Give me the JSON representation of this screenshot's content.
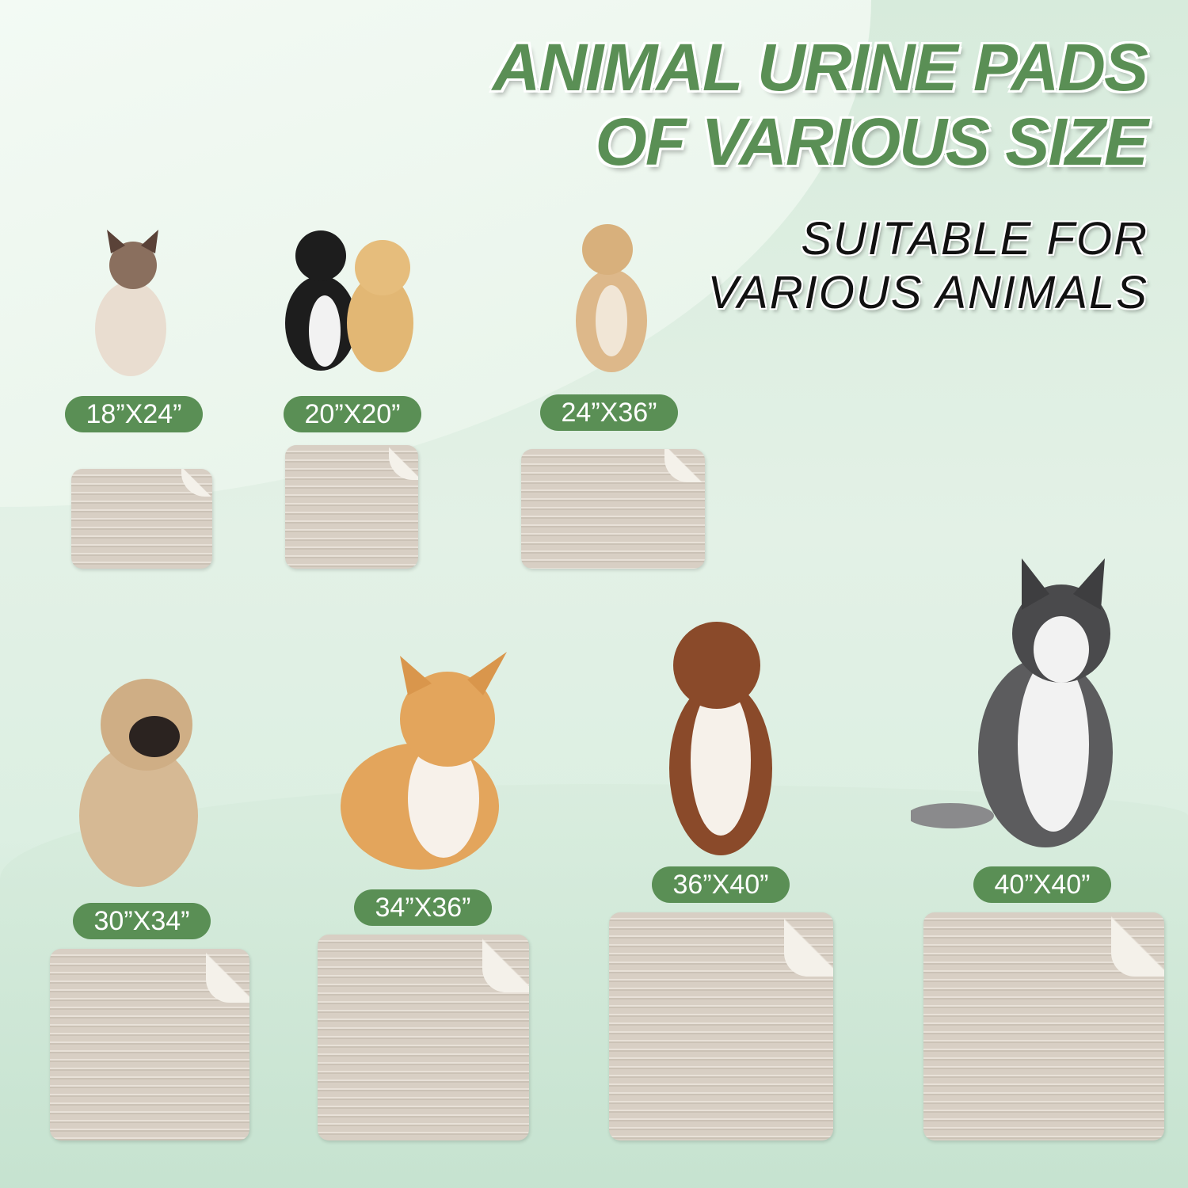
{
  "heading": {
    "line1": "ANIMAL URINE PADS",
    "line2": "OF VARIOUS SIZE"
  },
  "subheading": {
    "line1": "SUITABLE FOR",
    "line2": "VARIOUS ANIMALS"
  },
  "colors": {
    "accent": "#5a8f55",
    "pad": "#d9d1c6",
    "background": "#e3f1e6"
  },
  "sizes": [
    {
      "label": "18”X24”",
      "animal": "siamese-cat"
    },
    {
      "label": "20”X20”",
      "animal": "cat-and-puppy"
    },
    {
      "label": "24”X36”",
      "animal": "small-dog"
    },
    {
      "label": "30”X34”",
      "animal": "pug"
    },
    {
      "label": "34”X36”",
      "animal": "corgi"
    },
    {
      "label": "36”X40”",
      "animal": "australian-shepherd"
    },
    {
      "label": "40”X40”",
      "animal": "husky"
    }
  ]
}
